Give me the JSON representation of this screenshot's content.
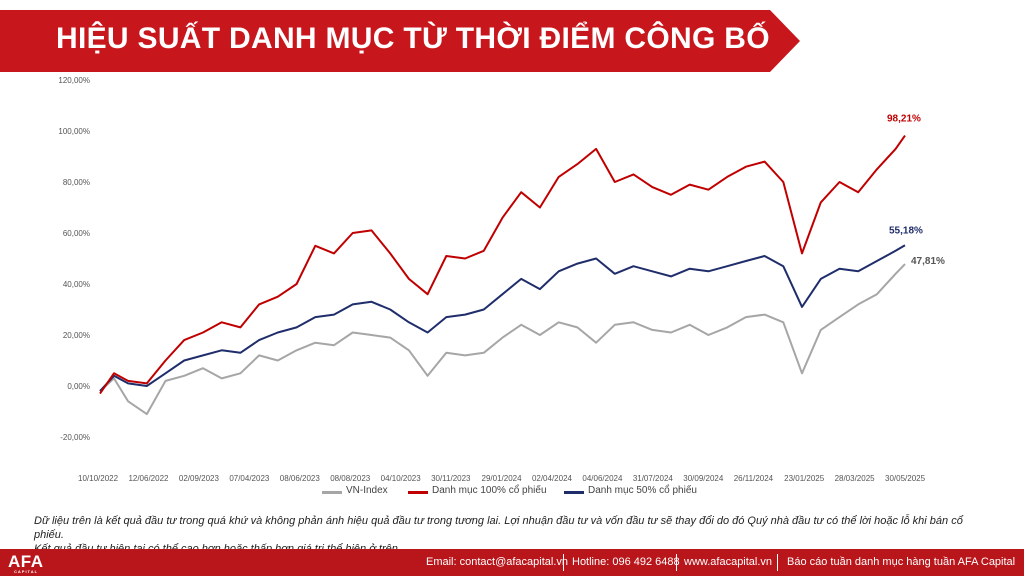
{
  "title": "HIỆU SUẤT DANH MỤC TỪ THỜI ĐIỂM CÔNG BỐ",
  "disclaimer": [
    "Dữ liệu trên là kết quả đầu tư trong quá khứ và không phản ánh hiệu quả đầu tư trong tương lai. Lợi nhuận đầu tư và vốn đầu tư sẽ thay đổi do đó Quý nhà đầu tư có thể lời hoặc lỗ khi bán cổ phiếu.",
    "Kết quả đầu tư hiện tại có thể cao hơn hoặc thấp hơn giá trị thể hiện ở trên."
  ],
  "footer": {
    "logo": "AFA",
    "logo_sub": "CAPITAL",
    "email": "Email: contact@afacapital.vn",
    "hotline": "Hotline: 096 492 6488",
    "website": "www.afacapital.vn",
    "report": "Báo cáo tuần danh mục hàng tuần AFA Capital"
  },
  "colors": {
    "brand_red": "#b8161b",
    "series_red": "#c00000",
    "series_navy": "#1f2d6b",
    "series_gray": "#a6a6a6"
  },
  "chart_data": {
    "type": "line",
    "title": "",
    "xlabel": "",
    "ylabel": "",
    "ylim": [
      -20,
      120
    ],
    "yticks": [
      "120,00%",
      "100,00%",
      "80,00%",
      "60,00%",
      "40,00%",
      "20,00%",
      "0,00%",
      "-20,00%"
    ],
    "ytick_values": [
      120,
      100,
      80,
      60,
      40,
      20,
      0,
      -20
    ],
    "xticks": [
      "10/10/2022",
      "12/06/2022",
      "02/09/2023",
      "07/04/2023",
      "08/06/2023",
      "08/08/2023",
      "04/10/2023",
      "30/11/2023",
      "29/01/2024",
      "02/04/2024",
      "04/06/2024",
      "31/07/2024",
      "30/09/2024",
      "26/11/2024",
      "23/01/2025",
      "28/03/2025",
      "30/05/2025"
    ],
    "legend_position": "bottom",
    "grid": false,
    "x_index": [
      0,
      3,
      6,
      10,
      14,
      18,
      22,
      26,
      30,
      34,
      38,
      42,
      46,
      50,
      54,
      58,
      62,
      66,
      70,
      74,
      78,
      82,
      86,
      90,
      94,
      98,
      102,
      106,
      110,
      114,
      118,
      122,
      126,
      130,
      134,
      138,
      142,
      146,
      150,
      154,
      158,
      162,
      166,
      170,
      172
    ],
    "series": [
      {
        "name": "VN-Index",
        "color": "#a6a6a6",
        "end_label": "47,81%",
        "values": [
          -2,
          3,
          -6,
          -11,
          2,
          4,
          7,
          3,
          5,
          12,
          10,
          14,
          17,
          16,
          21,
          20,
          19,
          14,
          4,
          13,
          12,
          13,
          19,
          24,
          20,
          25,
          23,
          17,
          24,
          25,
          22,
          21,
          24,
          20,
          23,
          27,
          28,
          25,
          5,
          22,
          27,
          32,
          36,
          44,
          47.81
        ]
      },
      {
        "name": "Danh mục 100% cổ phiếu",
        "color": "#c00000",
        "end_label": "98,21%",
        "values": [
          -3,
          5,
          2,
          1,
          10,
          18,
          21,
          25,
          23,
          32,
          35,
          40,
          55,
          52,
          60,
          61,
          52,
          42,
          36,
          51,
          50,
          53,
          66,
          76,
          70,
          82,
          87,
          93,
          80,
          83,
          78,
          75,
          79,
          77,
          82,
          86,
          88,
          80,
          52,
          72,
          80,
          76,
          85,
          93,
          98.21
        ]
      },
      {
        "name": "Danh mục 50% cổ phiếu",
        "color": "#1f2d6b",
        "end_label": "55,18%",
        "values": [
          -2,
          4,
          1,
          0,
          5,
          10,
          12,
          14,
          13,
          18,
          21,
          23,
          27,
          28,
          32,
          33,
          30,
          25,
          21,
          27,
          28,
          30,
          36,
          42,
          38,
          45,
          48,
          50,
          44,
          47,
          45,
          43,
          46,
          45,
          47,
          49,
          51,
          47,
          31,
          42,
          46,
          45,
          49,
          53,
          55.18
        ]
      }
    ]
  }
}
